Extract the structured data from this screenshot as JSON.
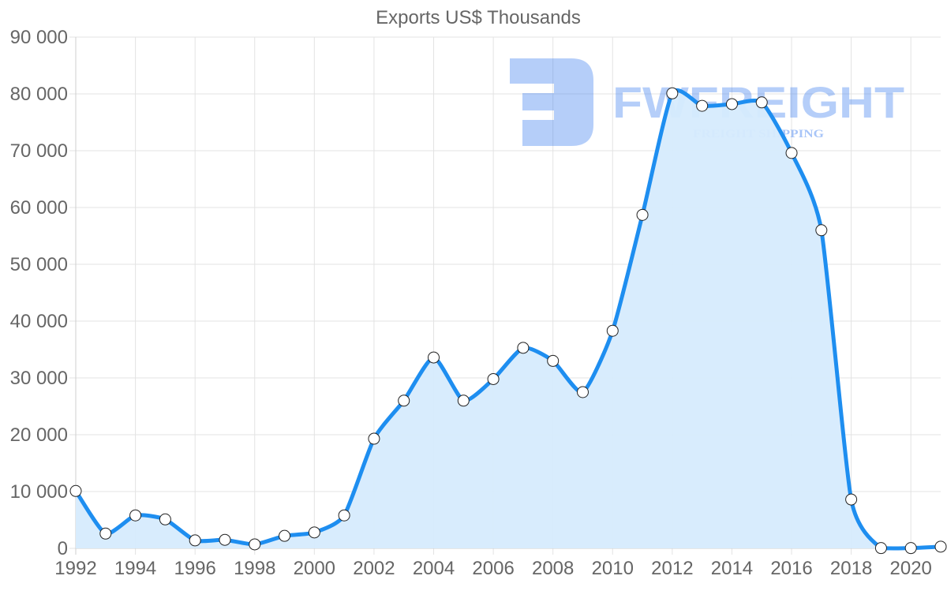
{
  "chart_data": {
    "type": "line",
    "title": "Exports US$ Thousands",
    "xlabel": "",
    "ylabel": "",
    "x": [
      1992,
      1993,
      1994,
      1995,
      1996,
      1997,
      1998,
      1999,
      2000,
      2001,
      2002,
      2003,
      2004,
      2005,
      2006,
      2007,
      2008,
      2009,
      2010,
      2011,
      2012,
      2013,
      2014,
      2015,
      2016,
      2017,
      2018,
      2019,
      2020,
      2021
    ],
    "series": [
      {
        "name": "Exports US$ Thousands",
        "values": [
          10100,
          2600,
          5800,
          5100,
          1400,
          1500,
          700,
          2200,
          2800,
          5800,
          19300,
          26000,
          33600,
          26000,
          29800,
          35300,
          33000,
          27500,
          38300,
          58700,
          80100,
          77900,
          78200,
          78500,
          69600,
          56000,
          8600,
          50,
          50,
          300
        ],
        "color": "#1e8ef0",
        "fill": "#d6ebfd"
      }
    ],
    "ylim": [
      0,
      90000
    ],
    "y_ticks": [
      "0",
      "10 000",
      "20 000",
      "30 000",
      "40 000",
      "50 000",
      "60 000",
      "70 000",
      "80 000",
      "90 000"
    ],
    "x_tick_labels": [
      "1992",
      "1994",
      "1996",
      "1998",
      "2000",
      "2002",
      "2004",
      "2006",
      "2008",
      "2010",
      "2012",
      "2014",
      "2016",
      "2018",
      "2020"
    ],
    "grid": true,
    "legend": "none",
    "watermark": {
      "brand": "FWFREIGHT",
      "tagline": "FREIGHT SHIPPING"
    }
  }
}
